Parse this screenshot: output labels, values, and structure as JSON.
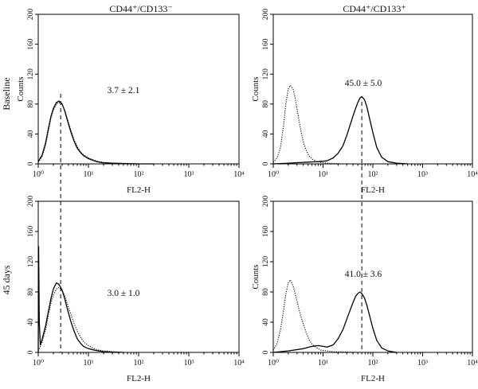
{
  "figure": {
    "column_titles": [
      "CD44⁺/CD133⁻",
      "CD44⁺/CD133⁺"
    ],
    "row_labels": [
      "Baseline",
      "45 days"
    ]
  },
  "chart_data": [
    {
      "type": "line",
      "panel": "baseline-cd133-neg",
      "xlabel": "FL2-H",
      "ylabel": "Counts",
      "xscale": "log",
      "xlim": [
        1,
        10000
      ],
      "ylim": [
        0,
        200
      ],
      "xticks": [
        "10⁰",
        "10¹",
        "10²",
        "10³",
        "10⁴"
      ],
      "yticks": [
        "0",
        "40",
        "80",
        "120",
        "160",
        "200"
      ],
      "annotation": "3.7 ± 2.1",
      "reference_line_x": 2.8,
      "series": [
        {
          "style": "solid",
          "x": [
            1.0,
            1.2,
            1.4,
            1.6,
            1.8,
            2.0,
            2.3,
            2.6,
            3.0,
            3.4,
            3.9,
            4.5,
            5.2,
            6,
            7,
            8,
            10,
            13,
            16,
            20,
            30,
            50,
            100,
            200
          ],
          "y": [
            3,
            12,
            28,
            48,
            64,
            74,
            82,
            84,
            80,
            70,
            56,
            42,
            30,
            21,
            15,
            11,
            7,
            4,
            2.5,
            1.5,
            1,
            0.5,
            0,
            0
          ]
        },
        {
          "style": "dotted",
          "x": [
            1.0,
            1.2,
            1.4,
            1.6,
            1.8,
            2.0,
            2.3,
            2.6,
            3.0,
            3.4,
            3.9,
            4.5,
            5.2,
            6,
            7,
            8,
            10,
            13,
            16,
            20,
            30,
            50,
            100,
            200
          ],
          "y": [
            2,
            10,
            25,
            45,
            62,
            72,
            80,
            82,
            79,
            71,
            58,
            44,
            32,
            23,
            16,
            12,
            8,
            5,
            3,
            2,
            1,
            0.5,
            0,
            0
          ]
        }
      ]
    },
    {
      "type": "line",
      "panel": "baseline-cd133-pos",
      "xlabel": "FL2-H",
      "ylabel": "Counts",
      "xscale": "log",
      "xlim": [
        1,
        10000
      ],
      "ylim": [
        0,
        200
      ],
      "xticks": [
        "10⁰",
        "10¹",
        "10²",
        "10³",
        "10⁴"
      ],
      "yticks": [
        "0",
        "40",
        "80",
        "120",
        "160",
        "200"
      ],
      "annotation": "45.0 ± 5.0",
      "reference_line_x": 60,
      "series": [
        {
          "style": "dotted",
          "x": [
            1.0,
            1.2,
            1.4,
            1.6,
            1.8,
            2.0,
            2.2,
            2.5,
            2.8,
            3.1,
            3.5,
            4.0,
            4.6,
            5.3,
            6.2,
            7.5,
            9,
            12,
            16,
            25,
            50,
            100
          ],
          "y": [
            2,
            8,
            22,
            50,
            82,
            100,
            105,
            100,
            86,
            68,
            48,
            30,
            18,
            10,
            6,
            3,
            2,
            1,
            0.5,
            0,
            0,
            0
          ]
        },
        {
          "style": "solid",
          "x": [
            1.0,
            2,
            4,
            8,
            12,
            16,
            20,
            25,
            30,
            35,
            40,
            45,
            50,
            55,
            60,
            68,
            76,
            85,
            100,
            120,
            150,
            200,
            300,
            500
          ],
          "y": [
            0,
            1,
            2,
            3,
            4,
            8,
            14,
            24,
            38,
            52,
            64,
            74,
            82,
            88,
            90,
            86,
            76,
            62,
            42,
            22,
            9,
            3,
            1,
            0
          ]
        }
      ]
    },
    {
      "type": "line",
      "panel": "45days-cd133-neg",
      "xlabel": "FL2-H",
      "ylabel": "",
      "xscale": "log",
      "xlim": [
        1,
        10000
      ],
      "ylim": [
        0,
        200
      ],
      "xticks": [
        "10⁰",
        "10¹",
        "10²",
        "10³",
        "10⁴"
      ],
      "yticks": [
        "0",
        "40",
        "80",
        "120",
        "160",
        "200"
      ],
      "annotation": "3.0 ± 1.0",
      "reference_line_x": 2.8,
      "series": [
        {
          "style": "solid",
          "x": [
            1.0,
            1.02,
            1.05,
            1.1,
            1.2,
            1.4,
            1.6,
            1.8,
            2.0,
            2.3,
            2.6,
            3.0,
            3.4,
            3.9,
            4.5,
            5.2,
            6,
            7,
            8,
            10,
            13,
            16,
            20,
            30,
            50
          ],
          "y": [
            0,
            140,
            40,
            10,
            18,
            35,
            55,
            72,
            84,
            92,
            90,
            82,
            70,
            55,
            40,
            28,
            18,
            12,
            8,
            5,
            3,
            2,
            1,
            0.5,
            0
          ]
        },
        {
          "style": "dotted",
          "x": [
            1.0,
            1.2,
            1.4,
            1.6,
            1.8,
            2.0,
            2.3,
            2.6,
            3.0,
            3.4,
            3.9,
            4.5,
            5.2,
            6,
            7,
            8,
            10,
            13,
            16,
            20,
            30,
            50
          ],
          "y": [
            2,
            14,
            30,
            50,
            66,
            76,
            84,
            86,
            82,
            74,
            62,
            50,
            38,
            28,
            20,
            14,
            9,
            5,
            3,
            2,
            1,
            0
          ]
        }
      ]
    },
    {
      "type": "line",
      "panel": "45days-cd133-pos",
      "xlabel": "FL2-H",
      "ylabel": "Counts",
      "xscale": "log",
      "xlim": [
        1,
        10000
      ],
      "ylim": [
        0,
        200
      ],
      "xticks": [
        "10⁰",
        "10¹",
        "10²",
        "10³",
        "10⁴"
      ],
      "yticks": [
        "0",
        "40",
        "80",
        "120",
        "160",
        "200"
      ],
      "annotation": "41.0 ± 3.6",
      "reference_line_x": 55,
      "series": [
        {
          "style": "dotted",
          "x": [
            1.0,
            1.2,
            1.4,
            1.6,
            1.8,
            2.0,
            2.2,
            2.5,
            2.8,
            3.1,
            3.5,
            4.0,
            4.6,
            5.3,
            6.2,
            7.5,
            9,
            12,
            16,
            25,
            50
          ],
          "y": [
            3,
            12,
            30,
            55,
            78,
            92,
            96,
            88,
            76,
            64,
            50,
            38,
            26,
            16,
            10,
            6,
            3,
            2,
            1,
            0.5,
            0
          ]
        },
        {
          "style": "solid",
          "x": [
            1.0,
            2,
            4,
            6,
            8,
            10,
            12,
            16,
            20,
            25,
            30,
            35,
            40,
            45,
            50,
            55,
            60,
            68,
            76,
            85,
            100,
            120,
            150,
            200,
            300
          ],
          "y": [
            0,
            2,
            5,
            8,
            9,
            8,
            7,
            10,
            18,
            30,
            44,
            56,
            66,
            74,
            78,
            80,
            78,
            72,
            62,
            50,
            32,
            16,
            6,
            2,
            0
          ]
        }
      ]
    }
  ]
}
